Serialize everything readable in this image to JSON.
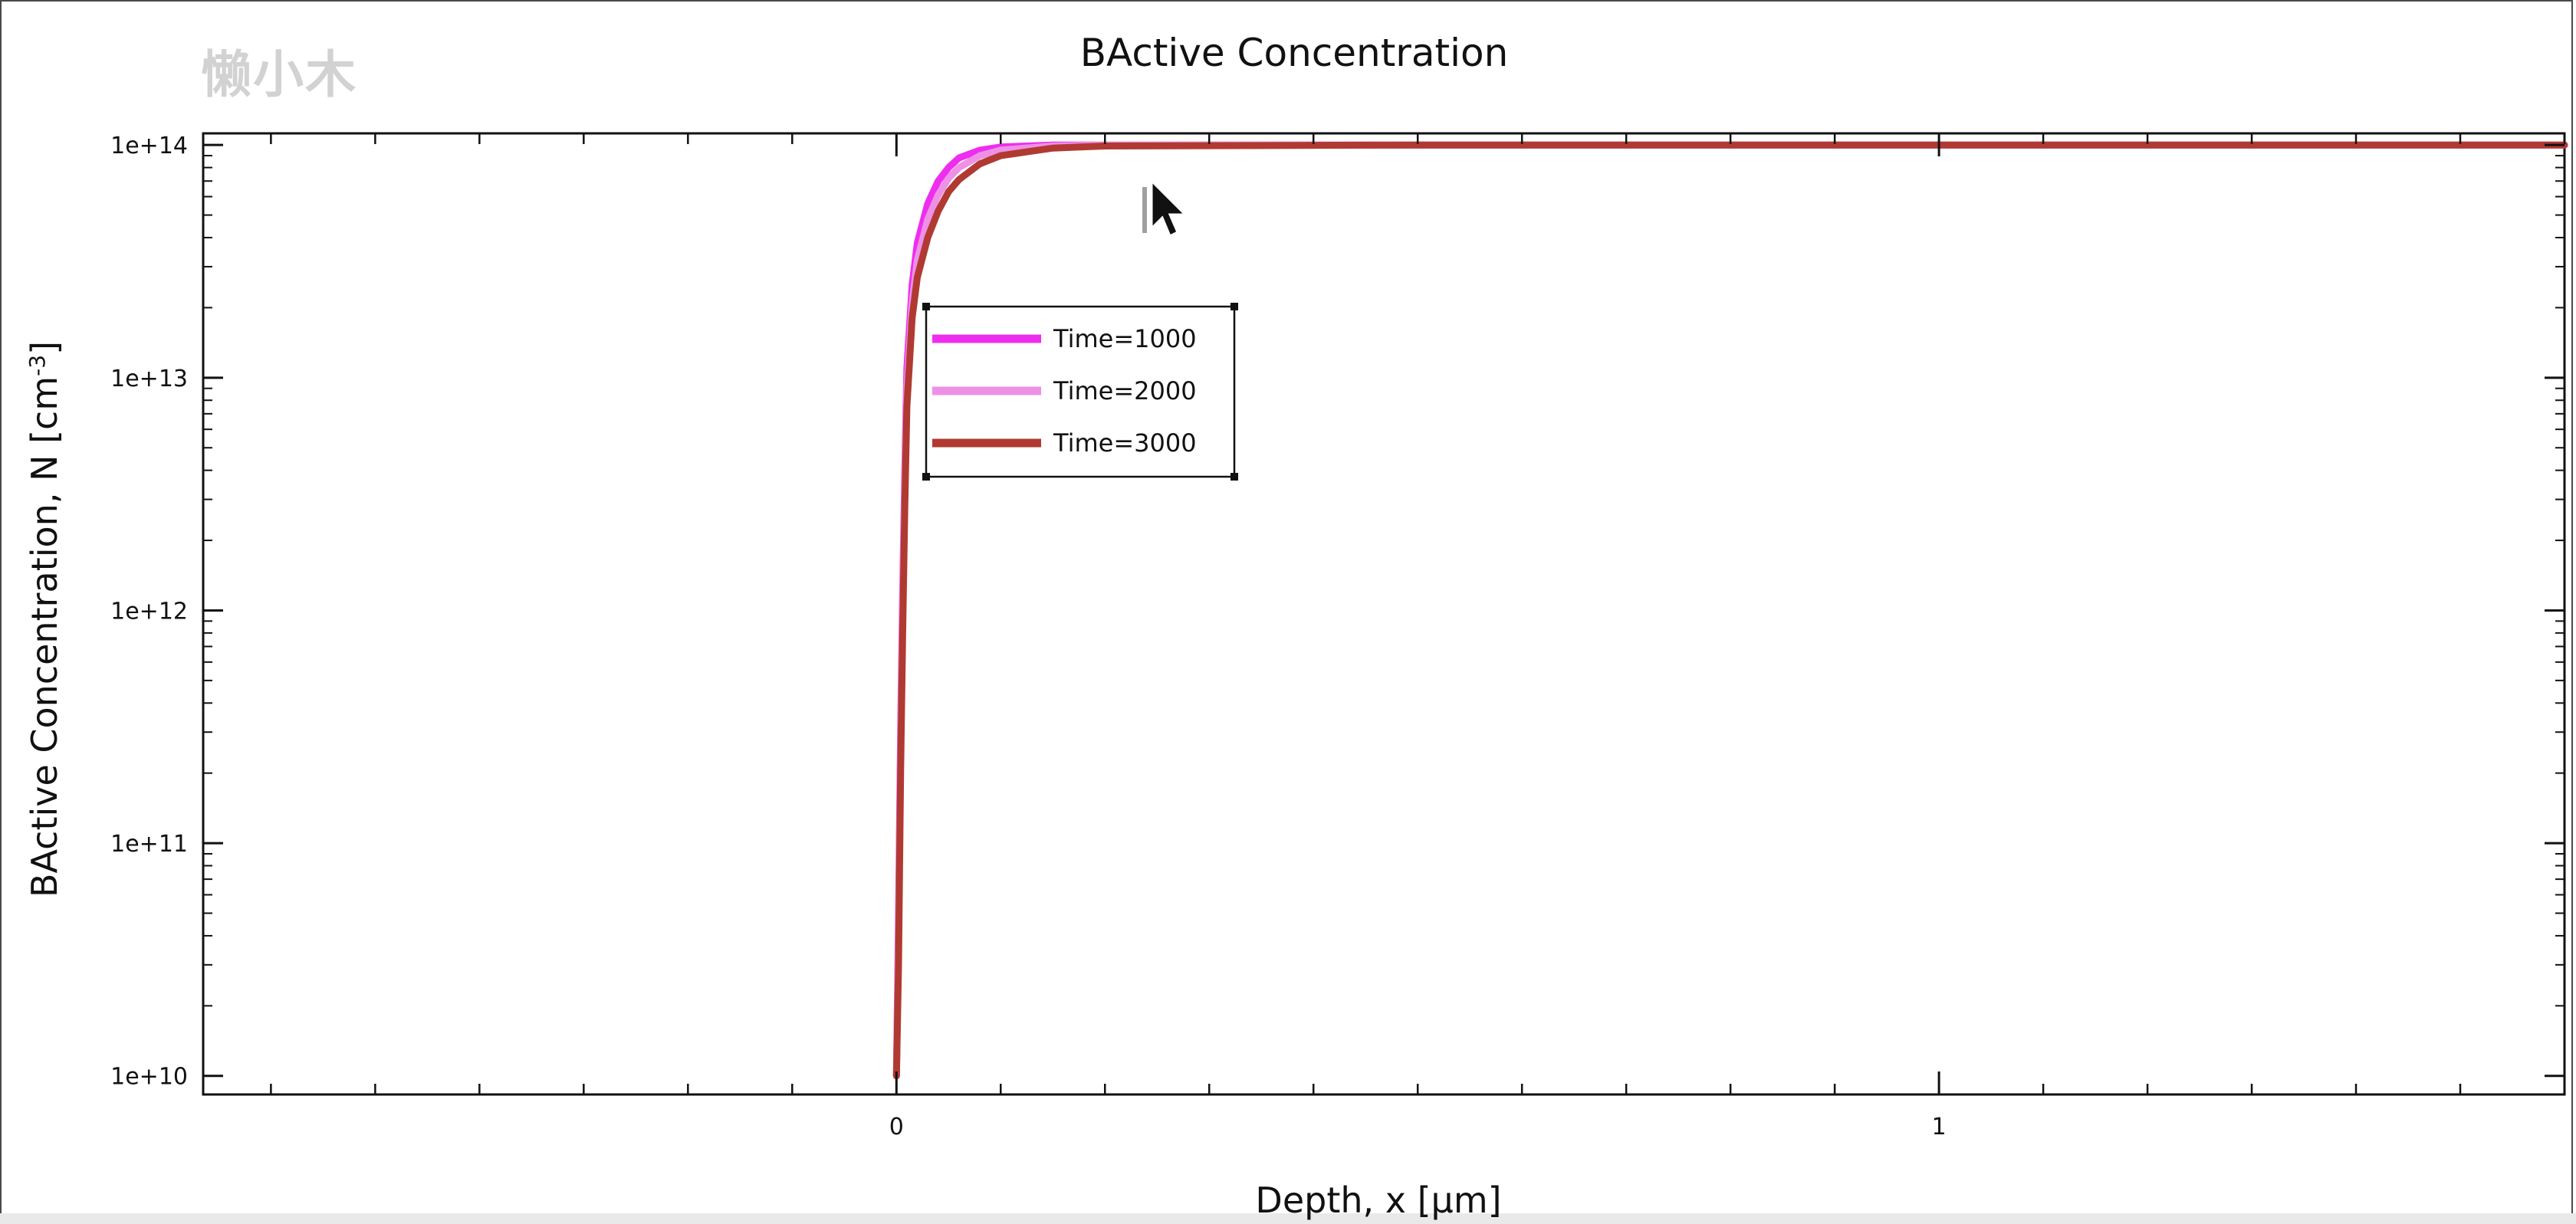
{
  "watermark": "懒小木",
  "chart_data": {
    "type": "line",
    "title": "BActive Concentration",
    "xlabel": "Depth, x [µm]",
    "ylabel_main": "BActive Concentration, N [cm",
    "ylabel_sup": "-3",
    "ylabel_close": "]",
    "xlim": [
      -0.665,
      1.6
    ],
    "ylim_log10": [
      9.92,
      14.05
    ],
    "yscale": "log",
    "x_ticks": [
      {
        "value": 0,
        "label": "0"
      },
      {
        "value": 1,
        "label": "1"
      }
    ],
    "y_ticks": [
      {
        "value": 10000000000.0,
        "label": "1e+10"
      },
      {
        "value": 100000000000.0,
        "label": "1e+11"
      },
      {
        "value": 1000000000000.0,
        "label": "1e+12"
      },
      {
        "value": 10000000000000.0,
        "label": "1e+13"
      },
      {
        "value": 100000000000000.0,
        "label": "1e+14"
      }
    ],
    "legend_position": "upper-left",
    "series": [
      {
        "name": "Time=1000",
        "color": "#ee2eee",
        "x": [
          0.0,
          0.002,
          0.004,
          0.006,
          0.008,
          0.01,
          0.015,
          0.02,
          0.03,
          0.04,
          0.05,
          0.06,
          0.08,
          0.1,
          0.15,
          0.2,
          0.5,
          1.0,
          1.6
        ],
        "y": [
          10000000000.0,
          50000000000.0,
          300000000000.0,
          1200000000000.0,
          4000000000000.0,
          11000000000000.0,
          25000000000000.0,
          38000000000000.0,
          56000000000000.0,
          70000000000000.0,
          80000000000000.0,
          88000000000000.0,
          95000000000000.0,
          98000000000000.0,
          100000000000000.0,
          100000000000000.0,
          100000000000000.0,
          100000000000000.0,
          100000000000000.0
        ]
      },
      {
        "name": "Time=2000",
        "color": "#ee90e6",
        "x": [
          0.0,
          0.002,
          0.004,
          0.006,
          0.008,
          0.01,
          0.015,
          0.02,
          0.03,
          0.04,
          0.05,
          0.06,
          0.08,
          0.1,
          0.15,
          0.2,
          0.5,
          1.0,
          1.6
        ],
        "y": [
          10000000000.0,
          40000000000.0,
          250000000000.0,
          1000000000000.0,
          3400000000000.0,
          9000000000000.0,
          21000000000000.0,
          32000000000000.0,
          48000000000000.0,
          61000000000000.0,
          72000000000000.0,
          80000000000000.0,
          90000000000000.0,
          95000000000000.0,
          99000000000000.0,
          100000000000000.0,
          100000000000000.0,
          100000000000000.0,
          100000000000000.0
        ]
      },
      {
        "name": "Time=3000",
        "color": "#b03a32",
        "x": [
          0.0,
          0.002,
          0.004,
          0.006,
          0.008,
          0.01,
          0.015,
          0.02,
          0.03,
          0.04,
          0.05,
          0.06,
          0.08,
          0.1,
          0.15,
          0.2,
          0.5,
          1.0,
          1.6
        ],
        "y": [
          10000000000.0,
          30000000000.0,
          200000000000.0,
          800000000000.0,
          2800000000000.0,
          7500000000000.0,
          18000000000000.0,
          27000000000000.0,
          40000000000000.0,
          52000000000000.0,
          63000000000000.0,
          71000000000000.0,
          83000000000000.0,
          90000000000000.0,
          97000000000000.0,
          99000000000000.0,
          100000000000000.0,
          100000000000000.0,
          100000000000000.0
        ]
      }
    ]
  }
}
